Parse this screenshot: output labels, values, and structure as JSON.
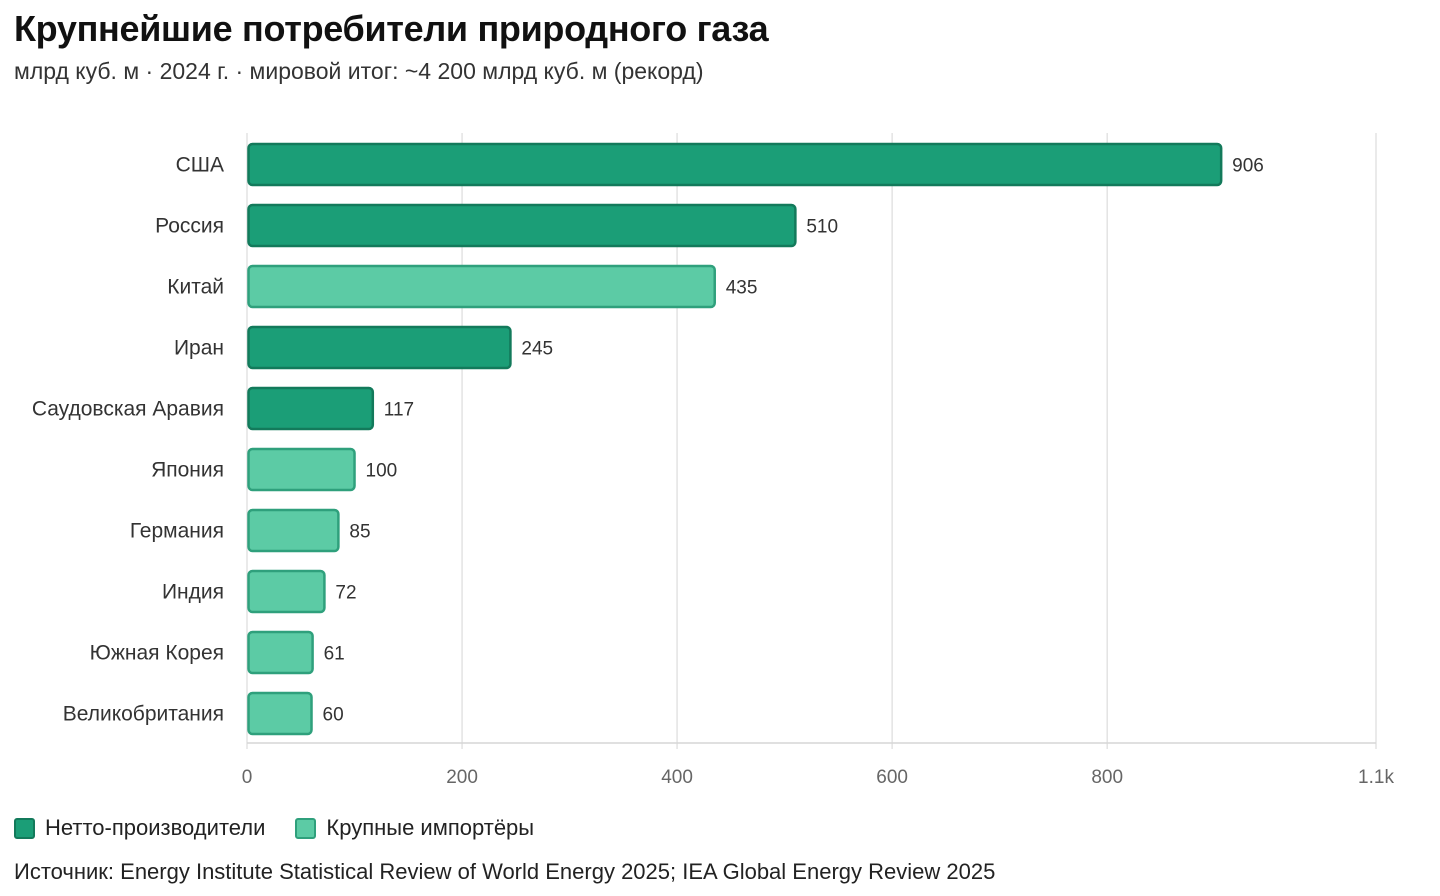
{
  "chart_data": {
    "type": "bar",
    "orientation": "horizontal",
    "title": "Крупнейшие потребители природного газа",
    "subtitle": "млрд куб. м · 2024 г. · мировой итог: ~4 200 млрд куб. м (рекорд)",
    "categories": [
      "США",
      "Россия",
      "Китай",
      "Иран",
      "Саудовская Аравия",
      "Япония",
      "Германия",
      "Индия",
      "Южная Корея",
      "Великобритания"
    ],
    "values": [
      906,
      510,
      435,
      245,
      117,
      100,
      85,
      72,
      61,
      60
    ],
    "groups": [
      "producer",
      "producer",
      "importer",
      "producer",
      "producer",
      "importer",
      "importer",
      "importer",
      "importer",
      "importer"
    ],
    "xlim": [
      0,
      1050
    ],
    "xticks": [
      0,
      200,
      400,
      600,
      800,
      1050
    ],
    "xtick_labels": [
      "0",
      "200",
      "400",
      "600",
      "800",
      "1.1k"
    ],
    "grid": true,
    "legend_position": "bottom-left",
    "legend": [
      {
        "key": "producer",
        "label": "Нетто-производители",
        "color": "#1b9e77",
        "border": "#137a5b"
      },
      {
        "key": "importer",
        "label": "Крупные импортёры",
        "color": "#5ccba5",
        "border": "#2fa07c"
      }
    ],
    "source": "Источник: Energy Institute Statistical Review of World Energy 2025; IEA Global Energy Review 2025"
  }
}
